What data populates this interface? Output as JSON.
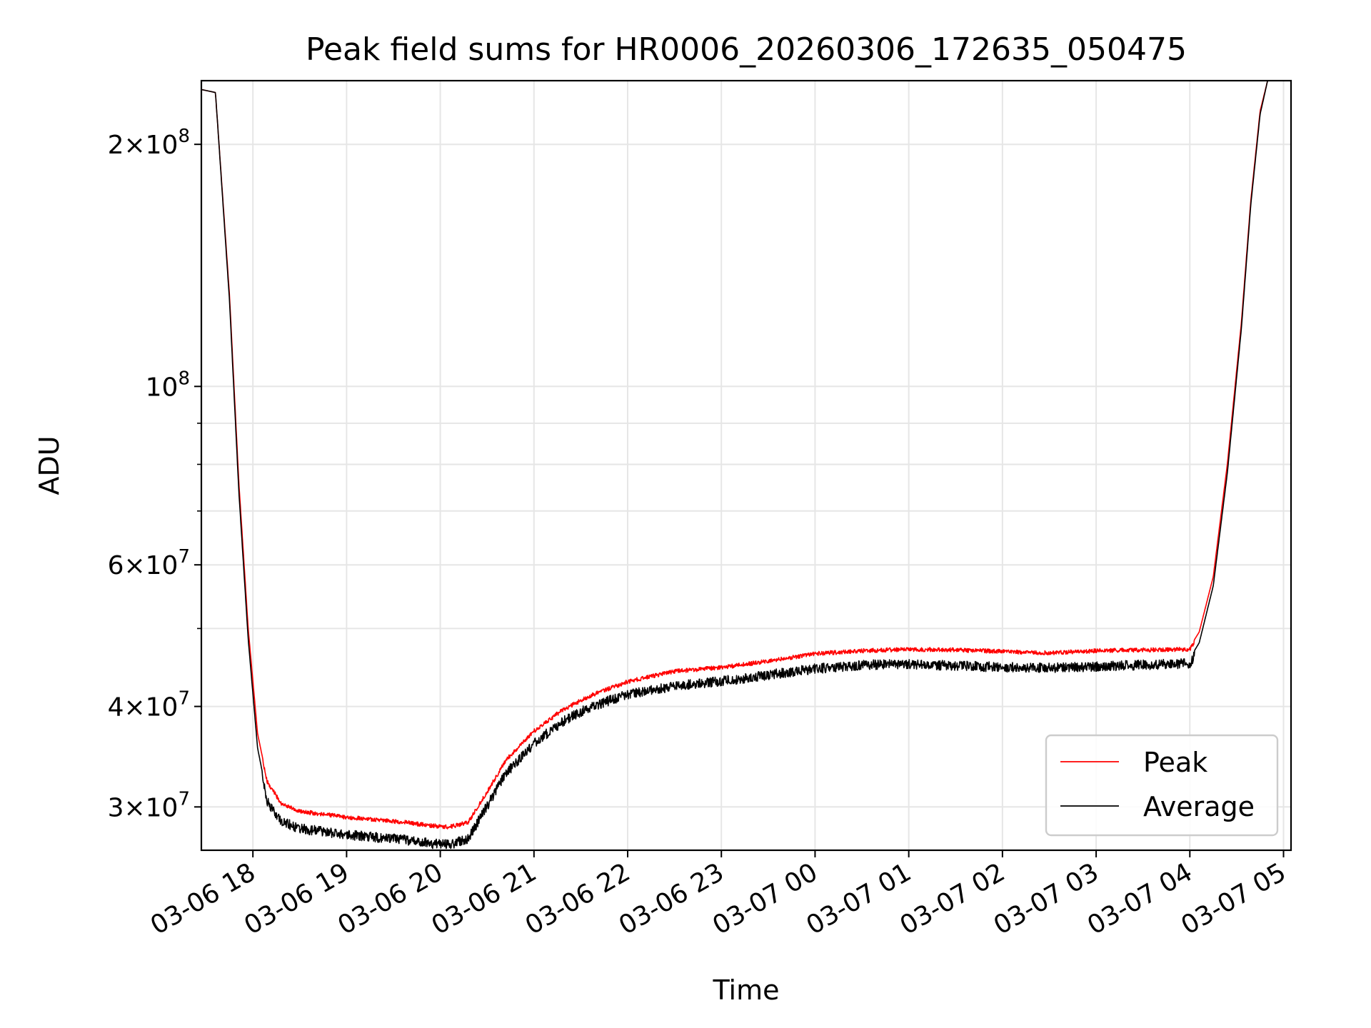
{
  "chart_data": {
    "type": "line",
    "title": "Peak field sums for HR0006_20260306_172635_050475",
    "xlabel": "Time",
    "ylabel": "ADU",
    "yscale": "log",
    "xlim": [
      17.45,
      29.08
    ],
    "ylim": [
      26500000,
      240000000
    ],
    "grid": true,
    "legend_position": "lower-right",
    "x_unit": "hours since 03-06 00:00",
    "x_ticks": [
      {
        "value": 18,
        "label": "03-06 18"
      },
      {
        "value": 19,
        "label": "03-06 19"
      },
      {
        "value": 20,
        "label": "03-06 20"
      },
      {
        "value": 21,
        "label": "03-06 21"
      },
      {
        "value": 22,
        "label": "03-06 22"
      },
      {
        "value": 23,
        "label": "03-06 23"
      },
      {
        "value": 24,
        "label": "03-07 00"
      },
      {
        "value": 25,
        "label": "03-07 01"
      },
      {
        "value": 26,
        "label": "03-07 02"
      },
      {
        "value": 27,
        "label": "03-07 03"
      },
      {
        "value": 28,
        "label": "03-07 04"
      },
      {
        "value": 29,
        "label": "03-07 05"
      }
    ],
    "y_ticks": [
      {
        "value": 30000000,
        "mantissa": "3",
        "exponent": "7"
      },
      {
        "value": 40000000,
        "mantissa": "4",
        "exponent": "7"
      },
      {
        "value": 60000000,
        "mantissa": "6",
        "exponent": "7"
      },
      {
        "value": 100000000,
        "mantissa": "",
        "exponent": "8"
      },
      {
        "value": 200000000,
        "mantissa": "2",
        "exponent": "8"
      }
    ],
    "y_minor_ticks": [
      50000000,
      70000000,
      80000000,
      90000000
    ],
    "series": [
      {
        "name": "Peak",
        "color": "#ff0000",
        "noise_amplitude": 0.012,
        "x": [
          17.45,
          17.6,
          17.62,
          17.75,
          17.85,
          17.95,
          18.05,
          18.15,
          18.3,
          18.5,
          18.8,
          19.0,
          19.3,
          19.6,
          19.9,
          20.1,
          20.3,
          20.5,
          20.7,
          21.0,
          21.3,
          21.6,
          22.0,
          22.5,
          23.0,
          23.5,
          24.0,
          24.5,
          25.0,
          25.5,
          26.0,
          26.5,
          27.0,
          27.5,
          28.0,
          28.1,
          28.25,
          28.4,
          28.55,
          28.65,
          28.75,
          28.83
        ],
        "y": [
          234000000,
          232000000,
          215000000,
          130000000,
          76000000,
          50000000,
          37000000,
          32500000,
          30500000,
          29800000,
          29500000,
          29300000,
          29100000,
          28900000,
          28600000,
          28500000,
          28900000,
          31500000,
          34500000,
          37500000,
          39800000,
          41500000,
          43200000,
          44500000,
          45000000,
          45800000,
          46800000,
          47200000,
          47400000,
          47300000,
          47100000,
          46900000,
          47200000,
          47300000,
          47400000,
          49500000,
          58000000,
          80000000,
          120000000,
          170000000,
          220000000,
          240000000
        ]
      },
      {
        "name": "Average",
        "color": "#000000",
        "noise_amplitude": 0.028,
        "x": [
          17.45,
          17.6,
          17.62,
          17.75,
          17.85,
          17.95,
          18.05,
          18.15,
          18.3,
          18.5,
          18.8,
          19.0,
          19.3,
          19.6,
          19.9,
          20.1,
          20.3,
          20.5,
          20.7,
          21.0,
          21.3,
          21.6,
          22.0,
          22.5,
          23.0,
          23.5,
          24.0,
          24.5,
          25.0,
          25.5,
          26.0,
          26.5,
          27.0,
          27.5,
          28.0,
          28.1,
          28.25,
          28.4,
          28.55,
          28.65,
          28.75,
          28.83
        ],
        "y": [
          234000000,
          232000000,
          215000000,
          128000000,
          74000000,
          48500000,
          35500000,
          31000000,
          29200000,
          28600000,
          28300000,
          28100000,
          27900000,
          27700000,
          27400000,
          27300000,
          27800000,
          30500000,
          33500000,
          36500000,
          38800000,
          40500000,
          42000000,
          43000000,
          43600000,
          44400000,
          45200000,
          45700000,
          45800000,
          45600000,
          45400000,
          45300000,
          45500000,
          45700000,
          45900000,
          48000000,
          56500000,
          78000000,
          118000000,
          168000000,
          218000000,
          240000000
        ]
      }
    ]
  }
}
